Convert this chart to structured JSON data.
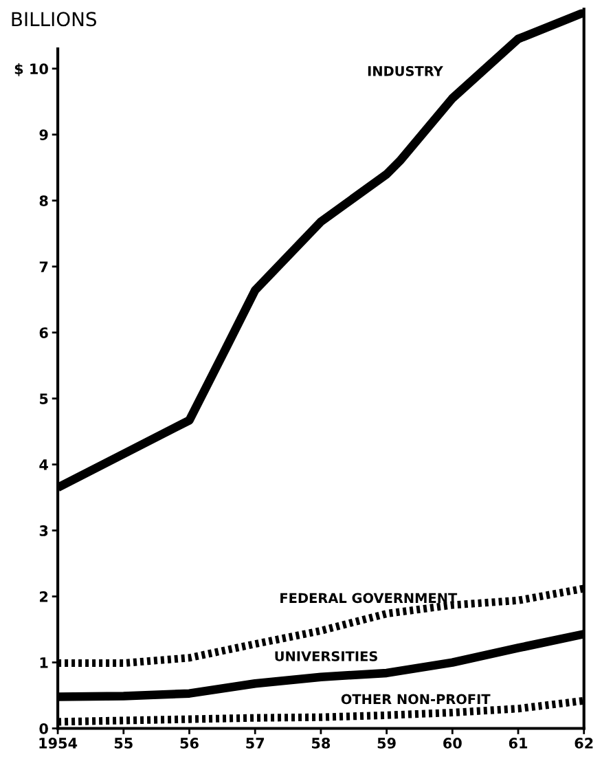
{
  "chart_data": {
    "type": "line",
    "ylabel": "BILLIONS",
    "xlim": [
      1954,
      1962
    ],
    "ylim": [
      0,
      10.9
    ],
    "xticks": [
      {
        "value": 1954,
        "label": "1954"
      },
      {
        "value": 1955,
        "label": "55"
      },
      {
        "value": 1956,
        "label": "56"
      },
      {
        "value": 1957,
        "label": "57"
      },
      {
        "value": 1958,
        "label": "58"
      },
      {
        "value": 1959,
        "label": "59"
      },
      {
        "value": 1960,
        "label": "60"
      },
      {
        "value": 1961,
        "label": "61"
      },
      {
        "value": 1962,
        "label": "62"
      }
    ],
    "yticks": [
      0,
      1,
      2,
      3,
      4,
      5,
      6,
      7,
      8,
      9,
      {
        "value": 10,
        "label": "$ 10"
      }
    ],
    "grid": false,
    "legend": false,
    "marker": "none",
    "series": [
      {
        "name": "INDUSTRY",
        "color": "#000000",
        "line_style": "solid",
        "x": [
          1954,
          1955,
          1956,
          1956.5,
          1957,
          1958,
          1959,
          1959.2,
          1960,
          1961,
          1962
        ],
        "values": [
          3.65,
          4.16,
          4.67,
          5.65,
          6.64,
          7.68,
          8.4,
          8.6,
          9.55,
          10.45,
          10.85
        ]
      },
      {
        "name": "FEDERAL GOVERNMENT",
        "color": "#000000",
        "line_style": "dotted",
        "x": [
          1954,
          1955,
          1956,
          1957,
          1958,
          1959,
          1960,
          1961,
          1962
        ],
        "values": [
          0.99,
          0.99,
          1.07,
          1.28,
          1.48,
          1.74,
          1.87,
          1.94,
          2.12
        ]
      },
      {
        "name": "UNIVERSITIES",
        "color": "#000000",
        "line_style": "solid",
        "x": [
          1954,
          1955,
          1956,
          1957,
          1958,
          1959,
          1960,
          1961,
          1962
        ],
        "values": [
          0.48,
          0.49,
          0.53,
          0.68,
          0.78,
          0.84,
          1.0,
          1.22,
          1.43
        ]
      },
      {
        "name": "OTHER NON-PROFIT",
        "color": "#000000",
        "line_style": "dotted",
        "x": [
          1954,
          1955,
          1956,
          1957,
          1958,
          1959,
          1960,
          1961,
          1962
        ],
        "values": [
          0.1,
          0.12,
          0.14,
          0.16,
          0.17,
          0.2,
          0.24,
          0.3,
          0.42
        ]
      }
    ]
  }
}
